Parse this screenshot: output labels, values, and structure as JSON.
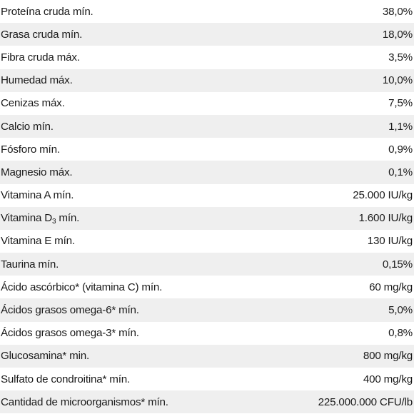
{
  "rows": [
    {
      "label": "Proteína cruda mín.",
      "value": "38,0%"
    },
    {
      "label": "Grasa cruda mín.",
      "value": "18,0%"
    },
    {
      "label": "Fibra cruda máx.",
      "value": "3,5%"
    },
    {
      "label": "Humedad máx.",
      "value": "10,0%"
    },
    {
      "label": "Cenizas máx.",
      "value": "7,5%"
    },
    {
      "label": "Calcio mín.",
      "value": "1,1%"
    },
    {
      "label": "Fósforo mín.",
      "value": "0,9%"
    },
    {
      "label": "Magnesio máx.",
      "value": "0,1%"
    },
    {
      "label": "Vitamina A mín.",
      "value": "25.000 IU/kg"
    },
    {
      "label_pre": "Vitamina D",
      "label_sub": "3",
      "label_post": " mín.",
      "value": "1.600 IU/kg"
    },
    {
      "label": "Vitamina E mín.",
      "value": "130 IU/kg"
    },
    {
      "label": "Taurina mín.",
      "value": "0,15%"
    },
    {
      "label": "Ácido ascórbico* (vitamina C) mín.",
      "value": "60 mg/kg"
    },
    {
      "label": "Ácidos grasos omega-6* mín.",
      "value": "5,0%"
    },
    {
      "label": "Ácidos grasos omega-3* mín.",
      "value": "0,8%"
    },
    {
      "label": "Glucosamina* min.",
      "value": "800 mg/kg"
    },
    {
      "label": "Sulfato de condroitina* mín.",
      "value": "400 mg/kg"
    },
    {
      "label": "Cantidad de microorganismos* mín.",
      "value": "225.000.000 CFU/lb"
    }
  ]
}
